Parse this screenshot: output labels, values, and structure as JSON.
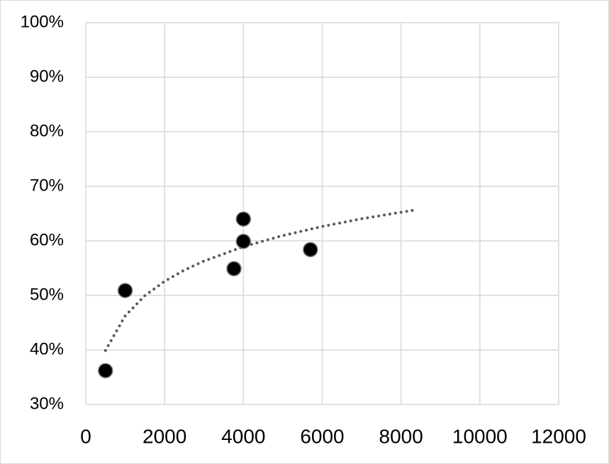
{
  "chart_data": {
    "type": "scatter",
    "series": [
      {
        "color": "#000000",
        "x": [
          500,
          1000,
          3760,
          4000,
          4000,
          5700
        ],
        "values": [
          36.2,
          50.9,
          54.9,
          64.0,
          59.9,
          58.4
        ]
      }
    ],
    "trendline": {
      "color": "#595959",
      "x": [
        500,
        1000,
        1500,
        2000,
        2500,
        3000,
        4000,
        5000,
        6000,
        7000,
        8400
      ],
      "values": [
        39.9,
        46.25,
        49.96,
        52.59,
        54.63,
        56.3,
        58.93,
        60.97,
        62.64,
        64.05,
        65.72
      ]
    },
    "xlim": [
      0,
      12000
    ],
    "xticks": [
      0,
      2000,
      4000,
      6000,
      8000,
      10000,
      12000
    ],
    "ylim": [
      30,
      100
    ],
    "yticks": [
      {
        "value": 30,
        "label": "30%"
      },
      {
        "value": 40,
        "label": "40%"
      },
      {
        "value": 50,
        "label": "50%"
      },
      {
        "value": 60,
        "label": "60%"
      },
      {
        "value": 70,
        "label": "70%"
      },
      {
        "value": 80,
        "label": "80%"
      },
      {
        "value": 90,
        "label": "90%"
      },
      {
        "value": 100,
        "label": "100%"
      }
    ],
    "grid": true
  }
}
